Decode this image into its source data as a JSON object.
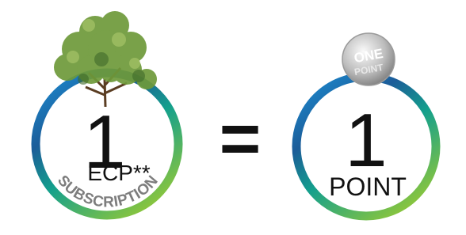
{
  "left": {
    "number": "1",
    "label": "ECP**",
    "subscription": "SUBSCRIPTION"
  },
  "equals": "=",
  "right": {
    "number": "1",
    "label": "POINT",
    "coin": [
      "ONE",
      "POINT"
    ]
  }
}
